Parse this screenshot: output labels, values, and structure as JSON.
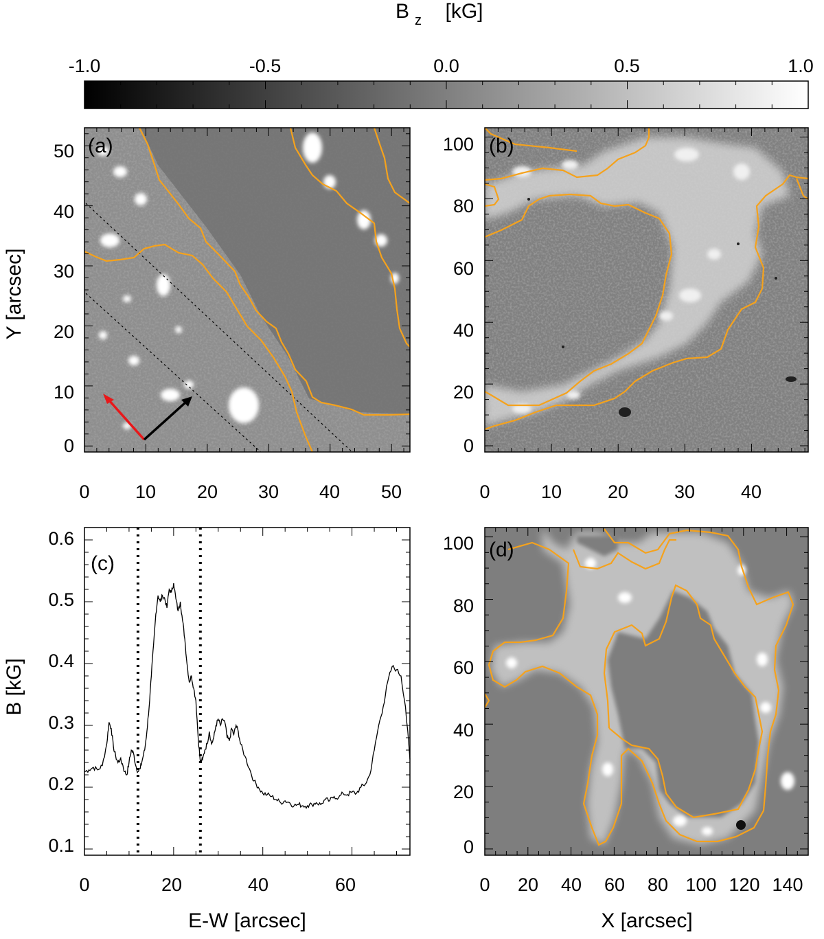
{
  "colorbar": {
    "title_main": "B",
    "title_sub": "z",
    "title_unit": "[kG]",
    "ticks": [
      "-1.0",
      "-0.5",
      "0.0",
      "0.5",
      "1.0"
    ],
    "range": [
      -1.0,
      1.0
    ]
  },
  "panels": {
    "a": {
      "label": "(a)",
      "ylabel": "Y [arcsec]",
      "xticks": [
        "0",
        "10",
        "20",
        "30",
        "40",
        "50"
      ],
      "yticks": [
        "0",
        "10",
        "20",
        "30",
        "40",
        "50"
      ],
      "xlim": [
        0,
        53
      ],
      "ylim": [
        -1,
        53
      ]
    },
    "b": {
      "label": "(b)",
      "xticks": [
        "0",
        "10",
        "20",
        "30",
        "40"
      ],
      "yticks": [
        "0",
        "20",
        "40",
        "60",
        "80",
        "100"
      ],
      "xlim": [
        0,
        48.5
      ],
      "ylim": [
        -2,
        103
      ]
    },
    "c": {
      "label": "(c)",
      "xlabel": "E-W [arcsec]",
      "ylabel": "B [kG]",
      "xticks": [
        "0",
        "20",
        "40",
        "60"
      ],
      "yticks": [
        "0.1",
        "0.2",
        "0.3",
        "0.4",
        "0.5",
        "0.6"
      ]
    },
    "d": {
      "label": "(d)",
      "xlabel": "X [arcsec]",
      "xticks": [
        "0",
        "20",
        "40",
        "60",
        "80",
        "100",
        "120",
        "140"
      ],
      "yticks": [
        "0",
        "20",
        "40",
        "60",
        "80",
        "100"
      ],
      "xlim": [
        0,
        150
      ],
      "ylim": [
        -2,
        103
      ]
    }
  },
  "chart_data": {
    "type": "line",
    "panel": "c",
    "xlabel": "E-W [arcsec]",
    "ylabel": "B [kG]",
    "xlim": [
      0,
      73
    ],
    "ylim": [
      0.09,
      0.62
    ],
    "vlines": [
      12,
      26
    ],
    "x": [
      0,
      1,
      2,
      3,
      4,
      5,
      5.5,
      6,
      6.5,
      7,
      7.5,
      8,
      8.5,
      9,
      9.5,
      10,
      10.5,
      11,
      11.5,
      12,
      12.5,
      13,
      13.5,
      14,
      14.5,
      15,
      15.5,
      16,
      16.5,
      17,
      17.5,
      18,
      18.5,
      19,
      19.5,
      20,
      20.5,
      21,
      21.5,
      22,
      22.5,
      23,
      23.5,
      24,
      24.5,
      25,
      25.5,
      26,
      26.5,
      27,
      27.5,
      28,
      28.5,
      29,
      29.5,
      30,
      30.5,
      31,
      31.5,
      32,
      32.5,
      33,
      33.5,
      34,
      34.5,
      35,
      36,
      37,
      38,
      39,
      40,
      41,
      42,
      43,
      44,
      45,
      46,
      47,
      48,
      49,
      50,
      51,
      52,
      53,
      54,
      55,
      56,
      57,
      58,
      59,
      60,
      61,
      62,
      63,
      64,
      65,
      66,
      67,
      68,
      69,
      70,
      71,
      72,
      73
    ],
    "values": [
      0.225,
      0.228,
      0.232,
      0.228,
      0.235,
      0.27,
      0.305,
      0.295,
      0.265,
      0.25,
      0.24,
      0.245,
      0.238,
      0.225,
      0.22,
      0.24,
      0.26,
      0.255,
      0.235,
      0.225,
      0.23,
      0.245,
      0.26,
      0.29,
      0.33,
      0.38,
      0.43,
      0.48,
      0.51,
      0.5,
      0.51,
      0.505,
      0.49,
      0.52,
      0.515,
      0.53,
      0.505,
      0.485,
      0.5,
      0.47,
      0.44,
      0.4,
      0.37,
      0.38,
      0.36,
      0.34,
      0.28,
      0.24,
      0.245,
      0.26,
      0.27,
      0.29,
      0.27,
      0.28,
      0.3,
      0.31,
      0.3,
      0.31,
      0.305,
      0.28,
      0.275,
      0.295,
      0.285,
      0.3,
      0.29,
      0.27,
      0.25,
      0.23,
      0.21,
      0.2,
      0.19,
      0.188,
      0.185,
      0.18,
      0.175,
      0.178,
      0.175,
      0.17,
      0.172,
      0.17,
      0.17,
      0.172,
      0.175,
      0.172,
      0.18,
      0.178,
      0.185,
      0.183,
      0.19,
      0.188,
      0.192,
      0.19,
      0.2,
      0.205,
      0.22,
      0.26,
      0.3,
      0.33,
      0.37,
      0.395,
      0.39,
      0.38,
      0.33,
      0.245
    ]
  }
}
